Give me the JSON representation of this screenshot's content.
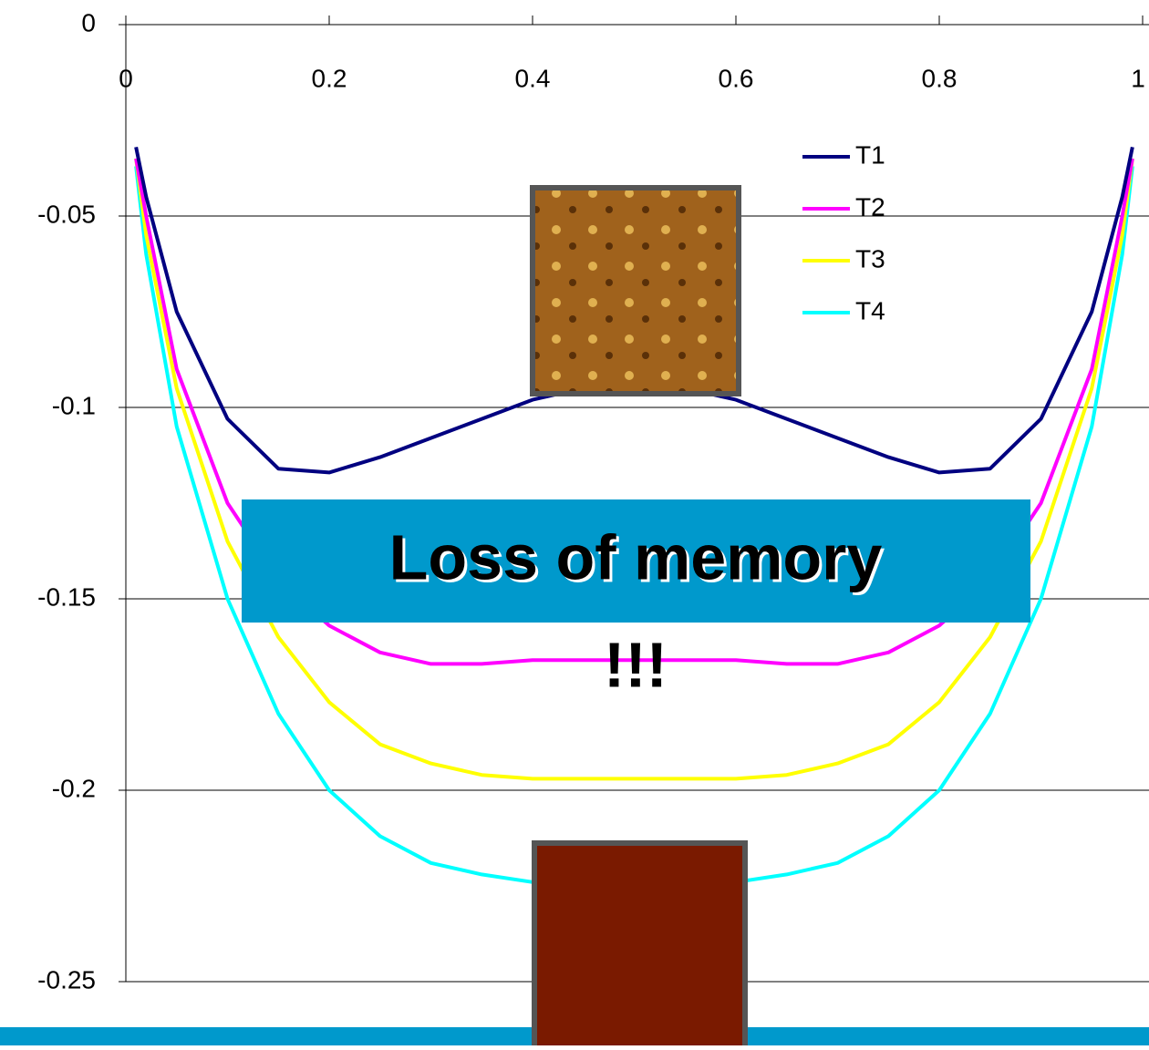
{
  "chart_data": {
    "type": "line",
    "x": [
      0.01,
      0.02,
      0.05,
      0.1,
      0.15,
      0.2,
      0.25,
      0.3,
      0.35,
      0.4,
      0.45,
      0.5,
      0.55,
      0.6,
      0.65,
      0.7,
      0.75,
      0.8,
      0.85,
      0.9,
      0.95,
      0.98,
      0.99
    ],
    "series": [
      {
        "name": "T1",
        "color": "#000080",
        "values": [
          -0.032,
          -0.045,
          -0.075,
          -0.103,
          -0.116,
          -0.117,
          -0.113,
          -0.108,
          -0.103,
          -0.098,
          -0.095,
          -0.094,
          -0.095,
          -0.098,
          -0.103,
          -0.108,
          -0.113,
          -0.117,
          -0.116,
          -0.103,
          -0.075,
          -0.045,
          -0.032
        ]
      },
      {
        "name": "T2",
        "color": "#ff00ff",
        "values": [
          -0.035,
          -0.05,
          -0.09,
          -0.125,
          -0.145,
          -0.157,
          -0.164,
          -0.167,
          -0.167,
          -0.166,
          -0.166,
          -0.166,
          -0.166,
          -0.166,
          -0.167,
          -0.167,
          -0.164,
          -0.157,
          -0.145,
          -0.125,
          -0.09,
          -0.05,
          -0.035
        ]
      },
      {
        "name": "T3",
        "color": "#ffff00",
        "values": [
          -0.035,
          -0.055,
          -0.095,
          -0.135,
          -0.16,
          -0.177,
          -0.188,
          -0.193,
          -0.196,
          -0.197,
          -0.197,
          -0.197,
          -0.197,
          -0.197,
          -0.196,
          -0.193,
          -0.188,
          -0.177,
          -0.16,
          -0.135,
          -0.095,
          -0.055,
          -0.035
        ]
      },
      {
        "name": "T4",
        "color": "#00ffff",
        "values": [
          -0.037,
          -0.06,
          -0.105,
          -0.15,
          -0.18,
          -0.2,
          -0.212,
          -0.219,
          -0.222,
          -0.224,
          -0.225,
          -0.225,
          -0.225,
          -0.224,
          -0.222,
          -0.219,
          -0.212,
          -0.2,
          -0.18,
          -0.15,
          -0.105,
          -0.06,
          -0.037
        ]
      }
    ],
    "xlim": [
      0,
      1
    ],
    "xticks": [
      0,
      0.2,
      0.4,
      0.6,
      0.8,
      1
    ],
    "ylim": [
      -0.25,
      0
    ],
    "yticks": [
      0,
      -0.05,
      -0.1,
      -0.15,
      -0.2,
      -0.25
    ],
    "grid": true,
    "legend": "upper-right",
    "annotations": [
      "Loss of memory",
      "!!!"
    ]
  }
}
